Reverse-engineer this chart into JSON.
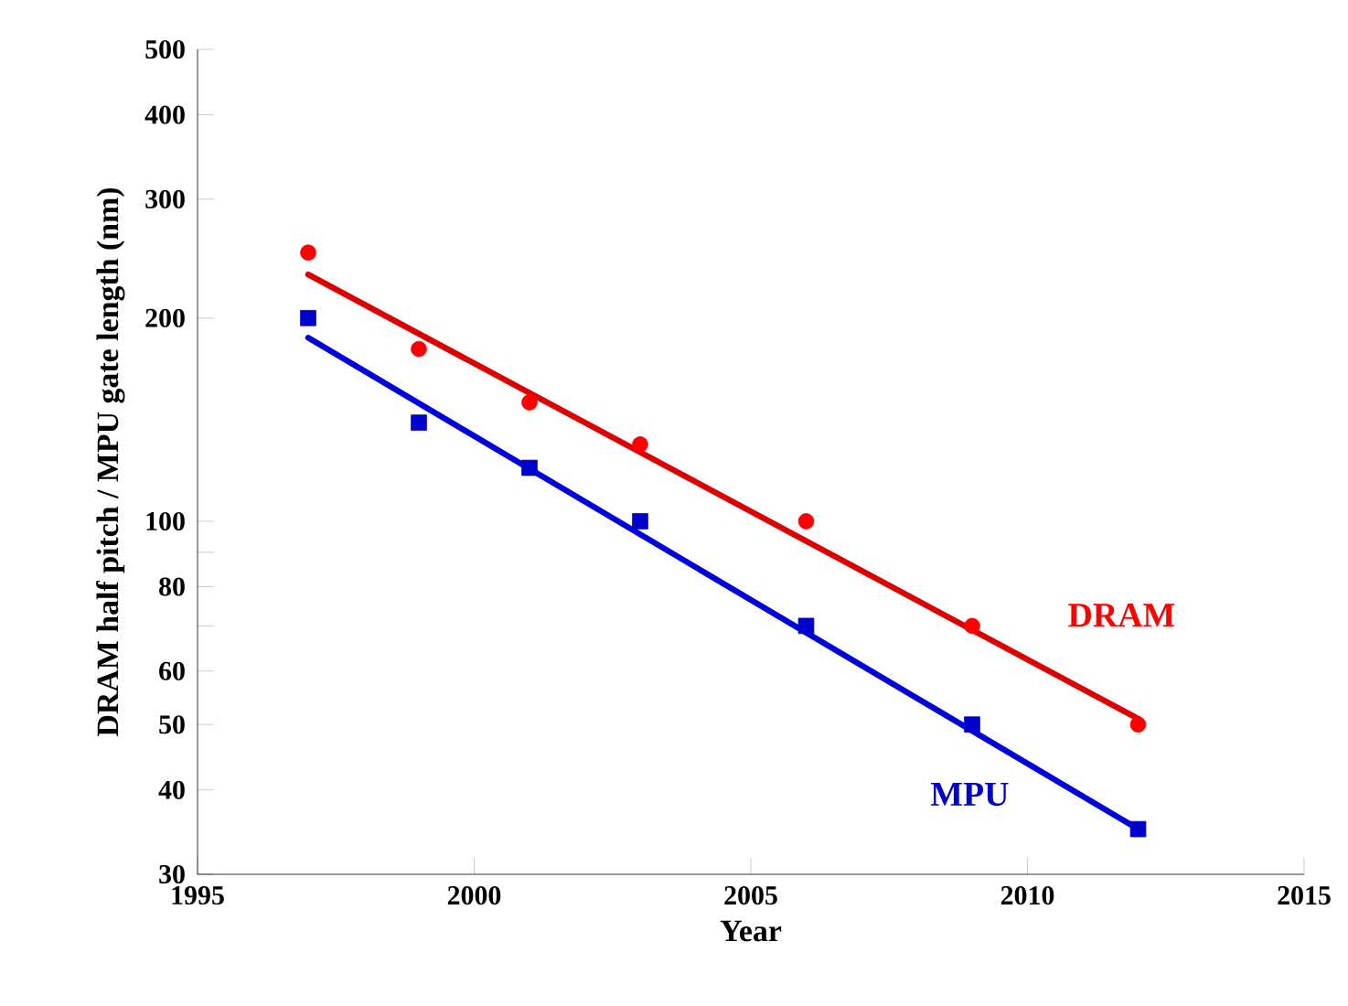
{
  "chart_data": {
    "type": "scatter",
    "xlabel": "Year",
    "ylabel": "DRAM half pitch / MPU gate length (nm)",
    "log": "y",
    "xlim": [
      1995,
      2015
    ],
    "xticks": [
      1995,
      2000,
      2005,
      2010,
      2015
    ],
    "ylim": [
      30,
      500
    ],
    "yticks": [
      30,
      40,
      50,
      60,
      {
        "value": 70,
        "label": null
      },
      80,
      {
        "value": 90,
        "label": null
      },
      100,
      200,
      300,
      400,
      500
    ],
    "series": [
      {
        "name": "DRAM",
        "marker": "circle",
        "color": "#ff0000",
        "x": [
          1997,
          1999,
          2001,
          2003,
          2006,
          2009,
          2012
        ],
        "values": [
          250,
          180,
          150,
          130,
          100,
          70,
          50
        ]
      },
      {
        "type": "line",
        "marker": "none",
        "color": "#dd0000",
        "x": [
          1997,
          2012
        ],
        "values": [
          232,
          51
        ]
      },
      {
        "name": "MPU",
        "marker": "square",
        "color": "#0000cc",
        "x": [
          1997,
          1999,
          2001,
          2003,
          2006,
          2009,
          2012
        ],
        "values": [
          200,
          140,
          120,
          100,
          70,
          50,
          35
        ]
      },
      {
        "type": "line",
        "marker": "none",
        "color": "#0000dd",
        "x": [
          1997,
          2012
        ],
        "values": [
          187,
          35
        ]
      }
    ]
  }
}
